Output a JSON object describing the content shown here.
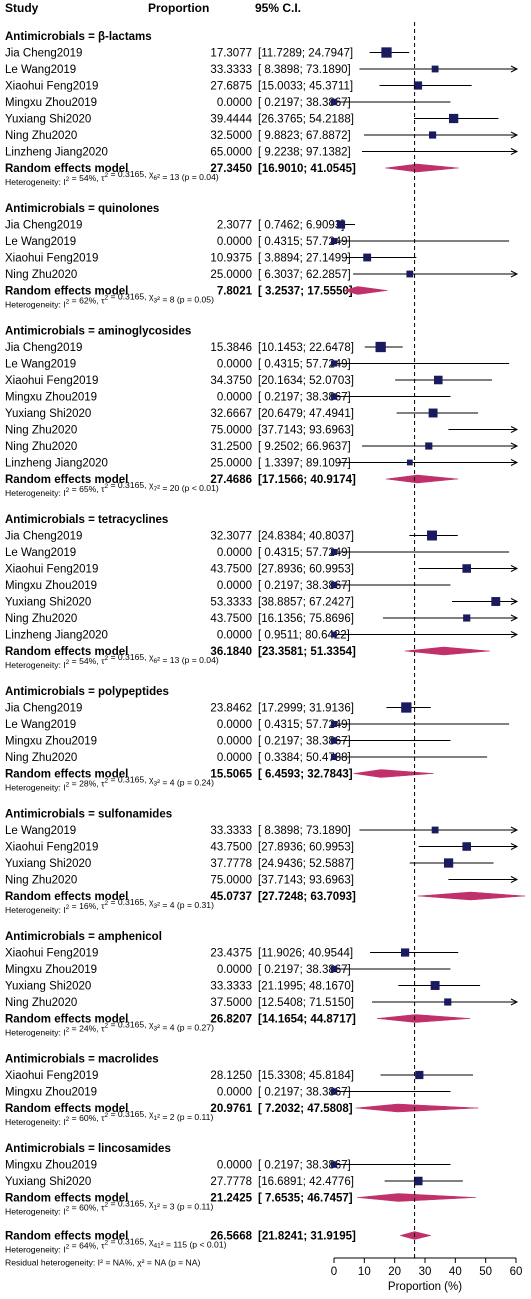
{
  "chart_data": {
    "type": "forest",
    "header": {
      "study": "Study",
      "proportion": "Proportion",
      "ci": "95% C.I."
    },
    "xlabel": "Proportion (%)",
    "xlim": [
      0,
      60
    ],
    "xticks": [
      0,
      10,
      20,
      30,
      40,
      50,
      60
    ],
    "reference_line": 26.5668,
    "colors": {
      "study": "#1a1a5e",
      "summary": "#c0306b",
      "ci_line": "#000000"
    },
    "groups": [
      {
        "title": "Antimicrobials = β-lactams",
        "studies": [
          {
            "name": "Jia Cheng2019",
            "est": "17.3077",
            "ci": "[11.7289; 24.7947]",
            "est_v": 17.3077,
            "lo": 11.7289,
            "hi": 24.7947,
            "w": 0.9
          },
          {
            "name": "Le Wang2019",
            "est": "33.3333",
            "ci": "[ 8.3898; 73.1890]",
            "est_v": 33.3333,
            "lo": 8.3898,
            "hi": 73.189,
            "w": 0.4
          },
          {
            "name": "Xiaohui Feng2019",
            "est": "27.6875",
            "ci": "[15.0033; 45.3711]",
            "est_v": 27.6875,
            "lo": 15.0033,
            "hi": 45.3711,
            "w": 0.6
          },
          {
            "name": "Mingxu Zhou2019",
            "est": "0.0000",
            "ci": "[ 0.2197; 38.3867]",
            "est_v": 0.0,
            "lo": 0.2197,
            "hi": 38.3867,
            "w": 0.35
          },
          {
            "name": "Yuxiang Shi2020",
            "est": "39.4444",
            "ci": "[26.3765; 54.2188]",
            "est_v": 39.4444,
            "lo": 26.3765,
            "hi": 54.2188,
            "w": 0.75
          },
          {
            "name": "Ning Zhu2020",
            "est": "32.5000",
            "ci": "[ 9.8823; 67.8872]",
            "est_v": 32.5,
            "lo": 9.8823,
            "hi": 67.8872,
            "w": 0.45
          },
          {
            "name": "Linzheng Jiang2020",
            "est": "65.0000",
            "ci": "[ 9.2238; 97.1382]",
            "est_v": 65.0,
            "lo": 9.2238,
            "hi": 97.1382,
            "w": 0.3
          }
        ],
        "summary": {
          "label": "Random effects model",
          "est": "27.3450",
          "ci": "[16.9010; 41.0545]",
          "est_v": 27.345,
          "lo": 16.901,
          "hi": 41.0545
        },
        "heterogeneity": {
          "i2": "54%",
          "tau2": "0.3165",
          "df": "6",
          "chi": "13",
          "p": "(p = 0.04)"
        }
      },
      {
        "title": "Antimicrobials = quinolones",
        "studies": [
          {
            "name": "Jia Cheng2019",
            "est": "2.3077",
            "ci": "[ 0.7462; 6.9093]",
            "est_v": 2.3077,
            "lo": 0.7462,
            "hi": 6.9093,
            "w": 0.6
          },
          {
            "name": "Le Wang2019",
            "est": "0.0000",
            "ci": "[ 0.4315; 57.7249]",
            "est_v": 0.0,
            "lo": 0.4315,
            "hi": 57.7249,
            "w": 0.3
          },
          {
            "name": "Xiaohui Feng2019",
            "est": "10.9375",
            "ci": "[ 3.8894; 27.1499]",
            "est_v": 10.9375,
            "lo": 3.8894,
            "hi": 27.1499,
            "w": 0.55
          },
          {
            "name": "Ning Zhu2020",
            "est": "25.0000",
            "ci": "[ 6.3037; 62.2857]",
            "est_v": 25.0,
            "lo": 6.3037,
            "hi": 62.2857,
            "w": 0.4
          }
        ],
        "summary": {
          "label": "Random effects model",
          "est": "7.8021",
          "ci": "[ 3.2537; 17.5550]",
          "est_v": 7.8021,
          "lo": 3.2537,
          "hi": 17.555
        },
        "heterogeneity": {
          "i2": "62%",
          "tau2": "0.3165",
          "df": "3",
          "chi": "8",
          "p": "(p = 0.05)"
        }
      },
      {
        "title": "Antimicrobials = aminoglycosides",
        "studies": [
          {
            "name": "Jia Cheng2019",
            "est": "15.3846",
            "ci": "[10.1453; 22.6478]",
            "est_v": 15.3846,
            "lo": 10.1453,
            "hi": 22.6478,
            "w": 0.9
          },
          {
            "name": "Le Wang2019",
            "est": "0.0000",
            "ci": "[ 0.4315; 57.7249]",
            "est_v": 0.0,
            "lo": 0.4315,
            "hi": 57.7249,
            "w": 0.3
          },
          {
            "name": "Xiaohui Feng2019",
            "est": "34.3750",
            "ci": "[20.1634; 52.0703]",
            "est_v": 34.375,
            "lo": 20.1634,
            "hi": 52.0703,
            "w": 0.65
          },
          {
            "name": "Mingxu Zhou2019",
            "est": "0.0000",
            "ci": "[ 0.2197; 38.3867]",
            "est_v": 0.0,
            "lo": 0.2197,
            "hi": 38.3867,
            "w": 0.35
          },
          {
            "name": "Yuxiang Shi2020",
            "est": "32.6667",
            "ci": "[20.6479; 47.4941]",
            "est_v": 32.6667,
            "lo": 20.6479,
            "hi": 47.4941,
            "w": 0.7
          },
          {
            "name": "Ning Zhu2020",
            "est": "75.0000",
            "ci": "[37.7143; 93.6963]",
            "est_v": 75.0,
            "lo": 37.7143,
            "hi": 93.6963,
            "w": 0.4
          },
          {
            "name": "Ning Zhu2020",
            "est": "31.2500",
            "ci": "[ 9.2502; 66.9637]",
            "est_v": 31.25,
            "lo": 9.2502,
            "hi": 66.9637,
            "w": 0.45
          },
          {
            "name": "Linzheng Jiang2020",
            "est": "25.0000",
            "ci": "[ 1.3397; 89.1097]",
            "est_v": 25.0,
            "lo": 1.3397,
            "hi": 89.1097,
            "w": 0.25
          }
        ],
        "summary": {
          "label": "Random effects model",
          "est": "27.4686",
          "ci": "[17.1566; 40.9174]",
          "est_v": 27.4686,
          "lo": 17.1566,
          "hi": 40.9174
        },
        "heterogeneity": {
          "i2": "65%",
          "tau2": "0.3165",
          "df": "7",
          "chi": "20",
          "p": "(p < 0.01)"
        }
      },
      {
        "title": "Antimicrobials = tetracyclines",
        "studies": [
          {
            "name": "Jia Cheng2019",
            "est": "32.3077",
            "ci": "[24.8384; 40.8037]",
            "est_v": 32.3077,
            "lo": 24.8384,
            "hi": 40.8037,
            "w": 0.85
          },
          {
            "name": "Le Wang2019",
            "est": "0.0000",
            "ci": "[ 0.4315; 57.7249]",
            "est_v": 0.0,
            "lo": 0.4315,
            "hi": 57.7249,
            "w": 0.3
          },
          {
            "name": "Xiaohui Feng2019",
            "est": "43.7500",
            "ci": "[27.8936; 60.9953]",
            "est_v": 43.75,
            "lo": 27.8936,
            "hi": 60.9953,
            "w": 0.65
          },
          {
            "name": "Mingxu Zhou2019",
            "est": "0.0000",
            "ci": "[ 0.2197; 38.3867]",
            "est_v": 0.0,
            "lo": 0.2197,
            "hi": 38.3867,
            "w": 0.35
          },
          {
            "name": "Yuxiang Shi2020",
            "est": "53.3333",
            "ci": "[38.8857; 67.2427]",
            "est_v": 53.3333,
            "lo": 38.8857,
            "hi": 67.2427,
            "w": 0.7
          },
          {
            "name": "Ning Zhu2020",
            "est": "43.7500",
            "ci": "[16.1356; 75.8696]",
            "est_v": 43.75,
            "lo": 16.1356,
            "hi": 75.8696,
            "w": 0.45
          },
          {
            "name": "Linzheng Jiang2020",
            "est": "0.0000",
            "ci": "[ 0.9511; 80.6422]",
            "est_v": 0.0,
            "lo": 0.9511,
            "hi": 80.6422,
            "w": 0.25
          }
        ],
        "summary": {
          "label": "Random effects model",
          "est": "36.1840",
          "ci": "[23.3581; 51.3354]",
          "est_v": 36.184,
          "lo": 23.3581,
          "hi": 51.3354
        },
        "heterogeneity": {
          "i2": "54%",
          "tau2": "0.3165",
          "df": "6",
          "chi": "13",
          "p": "(p = 0.04)"
        }
      },
      {
        "title": "Antimicrobials = polypeptides",
        "studies": [
          {
            "name": "Jia Cheng2019",
            "est": "23.8462",
            "ci": "[17.2999; 31.9136]",
            "est_v": 23.8462,
            "lo": 17.2999,
            "hi": 31.9136,
            "w": 0.9
          },
          {
            "name": "Le Wang2019",
            "est": "0.0000",
            "ci": "[ 0.4315; 57.7249]",
            "est_v": 0.0,
            "lo": 0.4315,
            "hi": 57.7249,
            "w": 0.3
          },
          {
            "name": "Mingxu Zhou2019",
            "est": "0.0000",
            "ci": "[ 0.2197; 38.3867]",
            "est_v": 0.0,
            "lo": 0.2197,
            "hi": 38.3867,
            "w": 0.35
          },
          {
            "name": "Ning Zhu2020",
            "est": "0.0000",
            "ci": "[ 0.3384; 50.4738]",
            "est_v": 0.0,
            "lo": 0.3384,
            "hi": 50.4738,
            "w": 0.3
          }
        ],
        "summary": {
          "label": "Random effects model",
          "est": "15.5065",
          "ci": "[ 6.4593; 32.7843]",
          "est_v": 15.5065,
          "lo": 6.4593,
          "hi": 32.7843
        },
        "heterogeneity": {
          "i2": "28%",
          "tau2": "0.3165",
          "df": "3",
          "chi": "4",
          "p": "(p = 0.24)"
        }
      },
      {
        "title": "Antimicrobials = sulfonamides",
        "studies": [
          {
            "name": "Le Wang2019",
            "est": "33.3333",
            "ci": "[ 8.3898; 73.1890]",
            "est_v": 33.3333,
            "lo": 8.3898,
            "hi": 73.189,
            "w": 0.4
          },
          {
            "name": "Xiaohui Feng2019",
            "est": "43.7500",
            "ci": "[27.8936; 60.9953]",
            "est_v": 43.75,
            "lo": 27.8936,
            "hi": 60.9953,
            "w": 0.65
          },
          {
            "name": "Yuxiang Shi2020",
            "est": "37.7778",
            "ci": "[24.9436; 52.5887]",
            "est_v": 37.7778,
            "lo": 24.9436,
            "hi": 52.5887,
            "w": 0.75
          },
          {
            "name": "Ning Zhu2020",
            "est": "75.0000",
            "ci": "[37.7143; 93.6963]",
            "est_v": 75.0,
            "lo": 37.7143,
            "hi": 93.6963,
            "w": 0.4
          }
        ],
        "summary": {
          "label": "Random effects model",
          "est": "45.0737",
          "ci": "[27.7248; 63.7093]",
          "est_v": 45.0737,
          "lo": 27.7248,
          "hi": 63.7093
        },
        "heterogeneity": {
          "i2": "16%",
          "tau2": "0.3165",
          "df": "3",
          "chi": "4",
          "p": "(p = 0.31)"
        }
      },
      {
        "title": "Antimicrobials = amphenicol",
        "studies": [
          {
            "name": "Xiaohui Feng2019",
            "est": "23.4375",
            "ci": "[11.9026; 40.9544]",
            "est_v": 23.4375,
            "lo": 11.9026,
            "hi": 40.9544,
            "w": 0.6
          },
          {
            "name": "Mingxu Zhou2019",
            "est": "0.0000",
            "ci": "[ 0.2197; 38.3867]",
            "est_v": 0.0,
            "lo": 0.2197,
            "hi": 38.3867,
            "w": 0.35
          },
          {
            "name": "Yuxiang Shi2020",
            "est": "33.3333",
            "ci": "[21.1995; 48.1670]",
            "est_v": 33.3333,
            "lo": 21.1995,
            "hi": 48.167,
            "w": 0.7
          },
          {
            "name": "Ning Zhu2020",
            "est": "37.5000",
            "ci": "[12.5408; 71.5150]",
            "est_v": 37.5,
            "lo": 12.5408,
            "hi": 71.515,
            "w": 0.45
          }
        ],
        "summary": {
          "label": "Random effects model",
          "est": "26.8207",
          "ci": "[14.1654; 44.8717]",
          "est_v": 26.8207,
          "lo": 14.1654,
          "hi": 44.8717
        },
        "heterogeneity": {
          "i2": "24%",
          "tau2": "0.3165",
          "df": "3",
          "chi": "4",
          "p": "(p = 0.27)"
        }
      },
      {
        "title": "Antimicrobials = macrolides",
        "studies": [
          {
            "name": "Xiaohui Feng2019",
            "est": "28.1250",
            "ci": "[15.3308; 45.8184]",
            "est_v": 28.125,
            "lo": 15.3308,
            "hi": 45.8184,
            "w": 0.6
          },
          {
            "name": "Mingxu Zhou2019",
            "est": "0.0000",
            "ci": "[ 0.2197; 38.3867]",
            "est_v": 0.0,
            "lo": 0.2197,
            "hi": 38.3867,
            "w": 0.35
          }
        ],
        "summary": {
          "label": "Random effects model",
          "est": "20.9761",
          "ci": "[ 7.2032; 47.5808]",
          "est_v": 20.9761,
          "lo": 7.2032,
          "hi": 47.5808
        },
        "heterogeneity": {
          "i2": "60%",
          "tau2": "0.3165",
          "df": "1",
          "chi": "2",
          "p": "(p = 0.11)"
        }
      },
      {
        "title": "Antimicrobials = lincosamides",
        "studies": [
          {
            "name": "Mingxu Zhou2019",
            "est": "0.0000",
            "ci": "[ 0.2197; 38.3867]",
            "est_v": 0.0,
            "lo": 0.2197,
            "hi": 38.3867,
            "w": 0.35
          },
          {
            "name": "Yuxiang Shi2020",
            "est": "27.7778",
            "ci": "[16.6891; 42.4776]",
            "est_v": 27.7778,
            "lo": 16.6891,
            "hi": 42.4776,
            "w": 0.65
          }
        ],
        "summary": {
          "label": "Random effects model",
          "est": "21.2425",
          "ci": "[ 7.6535; 46.7457]",
          "est_v": 21.2425,
          "lo": 7.6535,
          "hi": 46.7457
        },
        "heterogeneity": {
          "i2": "60%",
          "tau2": "0.3165",
          "df": "1",
          "chi": "3",
          "p": "(p = 0.11)"
        }
      }
    ],
    "overall": {
      "label": "Random effects model",
      "est": "26.5668",
      "ci": "[21.8241; 31.9195]",
      "est_v": 26.5668,
      "lo": 21.8241,
      "hi": 31.9195,
      "heterogeneity": {
        "i2": "64%",
        "tau2": "0.3165",
        "df": "41",
        "chi": "115",
        "p": "(p < 0.01)"
      },
      "residual": "Residual heterogeneity: I² = NA%, χ² = NA (p = NA)"
    }
  }
}
